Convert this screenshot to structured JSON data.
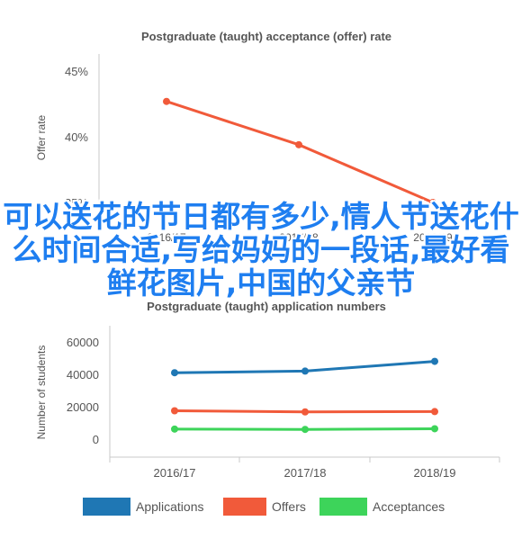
{
  "chart_data": [
    {
      "type": "line",
      "title": "Postgraduate (taught) acceptance (offer) rate",
      "xlabel": "",
      "ylabel": "Offer rate",
      "categories": [
        "2016/17",
        "2017/18",
        "2018/19"
      ],
      "yticks": [
        "35%",
        "40%",
        "45%"
      ],
      "ylim": [
        35,
        47
      ],
      "grid": false,
      "series": [
        {
          "name": "",
          "values": [
            42.7,
            39.4,
            35.0
          ],
          "color": "#f15a3a"
        }
      ]
    },
    {
      "type": "line",
      "title": "Postgraduate (taught) application numbers",
      "xlabel": "",
      "ylabel": "Number of students",
      "categories": [
        "2016/17",
        "2017/18",
        "2018/19"
      ],
      "yticks": [
        "0",
        "20000",
        "40000",
        "60000"
      ],
      "ylim": [
        -9000,
        70000
      ],
      "grid": false,
      "legend_position": "bottom",
      "series": [
        {
          "name": "Applications",
          "values": [
            41000,
            42000,
            48000
          ],
          "color": "#1f77b4"
        },
        {
          "name": "Offers",
          "values": [
            17500,
            16800,
            17000
          ],
          "color": "#f15a3a"
        },
        {
          "name": "Acceptances",
          "values": [
            6200,
            6000,
            6400
          ],
          "color": "#3dd45a"
        }
      ]
    }
  ],
  "overlay_text": "可以送花的节日都有多少,情人节送花什么时间合适,写给妈妈的一段话,最好看鲜花图片,中国的父亲节"
}
